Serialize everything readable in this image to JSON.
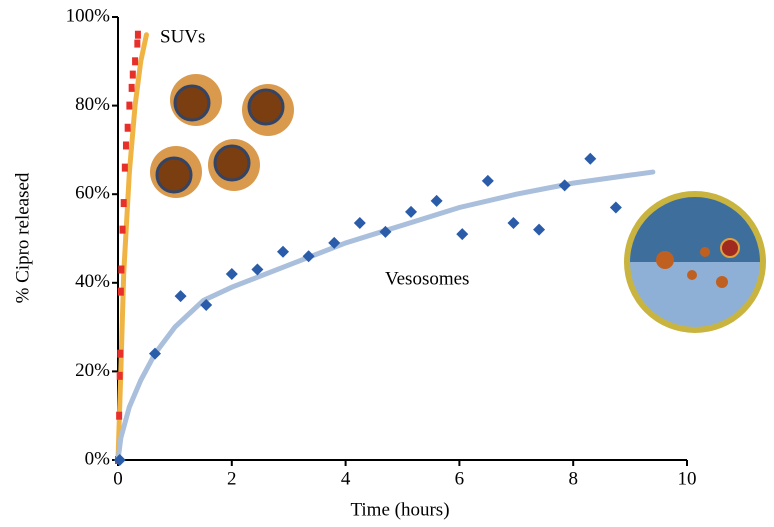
{
  "chart_data": {
    "type": "scatter",
    "xlabel": "Time (hours)",
    "ylabel": "% Cipro released",
    "xlim": [
      0,
      10
    ],
    "xticks": [
      0,
      2,
      4,
      6,
      8,
      10
    ],
    "ylim": [
      0,
      100
    ],
    "yticks": [
      {
        "value": 0,
        "label": "0%"
      },
      {
        "value": 20,
        "label": "20%"
      },
      {
        "value": 40,
        "label": "40%"
      },
      {
        "value": 60,
        "label": "60%"
      },
      {
        "value": 80,
        "label": "80%"
      },
      {
        "value": 100,
        "label": "100%"
      }
    ],
    "series": [
      {
        "name": "SUVs",
        "color": "#e8302a",
        "marker": "square",
        "x": [
          0,
          0.02,
          0.03,
          0.04,
          0.05,
          0.06,
          0.08,
          0.1,
          0.12,
          0.14,
          0.17,
          0.2,
          0.24,
          0.26,
          0.3,
          0.34,
          0.35
        ],
        "values": [
          0,
          10,
          19,
          24,
          38,
          43,
          52,
          58,
          66,
          71,
          75,
          80,
          84,
          87,
          90,
          94,
          96
        ],
        "fit": {
          "color": "#f0b444",
          "x": [
            0,
            0.05,
            0.1,
            0.2,
            0.3,
            0.4,
            0.5
          ],
          "values": [
            0,
            20,
            42,
            65,
            80,
            90,
            96
          ]
        }
      },
      {
        "name": "Vesosomes",
        "color": "#2a5caa",
        "marker": "diamond",
        "x": [
          0.03,
          0.65,
          1.1,
          1.55,
          2.0,
          2.45,
          2.9,
          3.35,
          3.8,
          4.25,
          4.7,
          5.15,
          5.6,
          6.05,
          6.5,
          6.95,
          7.4,
          7.85,
          8.3,
          8.75
        ],
        "values": [
          0,
          24,
          37,
          35,
          42,
          43,
          47,
          46,
          49,
          53.5,
          51.5,
          56,
          58.5,
          51,
          63,
          53.5,
          52,
          62,
          68,
          57
        ],
        "fit": {
          "color": "#a9bfdc",
          "x": [
            0,
            0.05,
            0.2,
            0.4,
            0.65,
            1,
            1.5,
            2,
            3,
            4,
            5,
            6,
            7,
            8,
            9,
            9.4
          ],
          "values": [
            0,
            5,
            12,
            18,
            24,
            30,
            36,
            39,
            44,
            49,
            53,
            57,
            60,
            62.5,
            64.3,
            65
          ]
        }
      }
    ]
  }
}
